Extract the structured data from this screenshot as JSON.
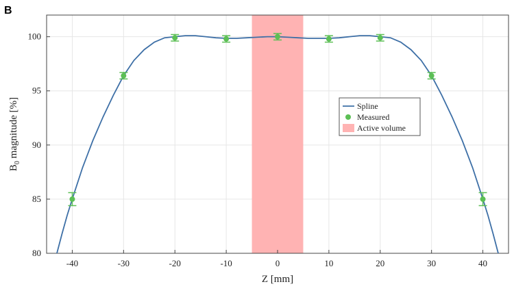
{
  "panel_label": "B",
  "chart_data": {
    "type": "line",
    "xlabel": "Z [mm]",
    "ylabel_main": "B",
    "ylabel_sub": "0",
    "ylabel_rest": " magnitude [%]",
    "xlim": [
      -45,
      45
    ],
    "ylim": [
      80,
      102
    ],
    "xticks": [
      -40,
      -30,
      -20,
      -10,
      0,
      10,
      20,
      30,
      40
    ],
    "yticks": [
      80,
      85,
      90,
      95,
      100
    ],
    "xtick_labels": [
      "-40",
      "-30",
      "-20",
      "-10",
      "0",
      "10",
      "20",
      "30",
      "40"
    ],
    "ytick_labels": [
      "80",
      "85",
      "90",
      "95",
      "100"
    ],
    "grid": true,
    "legend_position": "center-right",
    "series": [
      {
        "name": "Spline",
        "kind": "line",
        "color": "#3d6fa6",
        "x": [
          -43,
          -42,
          -41,
          -40,
          -38,
          -36,
          -34,
          -32,
          -30,
          -28,
          -26,
          -24,
          -22,
          -20,
          -18,
          -16,
          -14,
          -12,
          -10,
          -8,
          -6,
          -4,
          -2,
          0,
          2,
          4,
          6,
          8,
          10,
          12,
          14,
          16,
          18,
          20,
          22,
          24,
          26,
          28,
          30,
          32,
          34,
          36,
          38,
          40,
          41,
          42,
          43
        ],
        "y": [
          80.0,
          81.8,
          83.5,
          85.0,
          87.9,
          90.4,
          92.6,
          94.6,
          96.4,
          97.8,
          98.8,
          99.5,
          99.9,
          100.0,
          100.1,
          100.1,
          100.0,
          99.9,
          99.85,
          99.85,
          99.9,
          99.95,
          100.0,
          100.0,
          99.95,
          99.9,
          99.85,
          99.85,
          99.85,
          99.9,
          100.0,
          100.1,
          100.1,
          100.0,
          99.9,
          99.5,
          98.8,
          97.8,
          96.4,
          94.6,
          92.6,
          90.4,
          87.9,
          85.0,
          83.5,
          81.8,
          80.0
        ]
      },
      {
        "name": "Measured",
        "kind": "scatter",
        "color": "#5cbf55",
        "x": [
          -40,
          -30,
          -20,
          -10,
          0,
          10,
          20,
          30,
          40
        ],
        "y": [
          85.0,
          96.4,
          99.9,
          99.8,
          100.0,
          99.8,
          99.9,
          96.4,
          85.0
        ],
        "err": [
          0.6,
          0.3,
          0.3,
          0.3,
          0.3,
          0.3,
          0.3,
          0.3,
          0.6
        ]
      }
    ],
    "shaded_region": {
      "name": "Active volume",
      "x_start": -5,
      "x_end": 5,
      "color": "#ffb3b3"
    }
  }
}
